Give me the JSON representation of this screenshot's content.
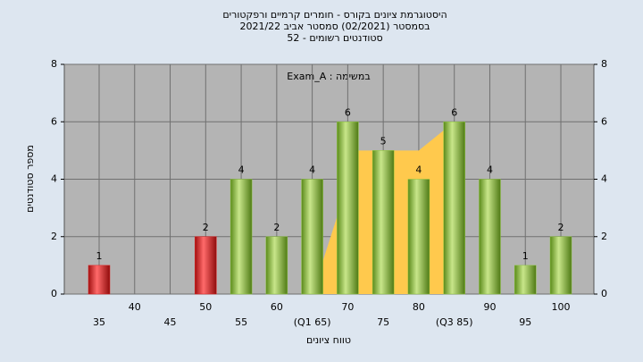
{
  "chart_data": {
    "type": "bar",
    "title": "היסטוגרמת ציונים בקורס - חומרים קרמיים ורפקטורים",
    "subtitle": "בסמסטר  (02/2021)  סמסטר אביב 2021/22",
    "subtitle2": "סטודנטים רשומים - 52",
    "annotation": "Exam_A : במשימה",
    "ylabel": "מספר סטודנטים",
    "xlabel": "טווח ציונים",
    "categories": [
      "35",
      "40",
      "45",
      "50",
      "55",
      "60",
      "(Q1 65)",
      "70",
      "75",
      "80",
      "(Q3 85)",
      "90",
      "95",
      "100"
    ],
    "values": [
      1,
      0,
      0,
      2,
      4,
      2,
      4,
      6,
      5,
      4,
      6,
      4,
      1,
      2
    ],
    "colors": [
      "#e02020",
      "#e02020",
      "#e02020",
      "#e02020",
      "#8dc63f",
      "#8dc63f",
      "#8dc63f",
      "#8dc63f",
      "#8dc63f",
      "#8dc63f",
      "#8dc63f",
      "#8dc63f",
      "#8dc63f",
      "#8dc63f"
    ],
    "quartile_area": {
      "color": "#ffc94d",
      "x": [
        6,
        7.3,
        9,
        10,
        10
      ],
      "y": [
        0,
        5,
        5,
        6,
        0
      ]
    },
    "ylim": [
      0,
      8
    ],
    "yticks": [
      0,
      2,
      4,
      6,
      8
    ],
    "grid": true
  }
}
